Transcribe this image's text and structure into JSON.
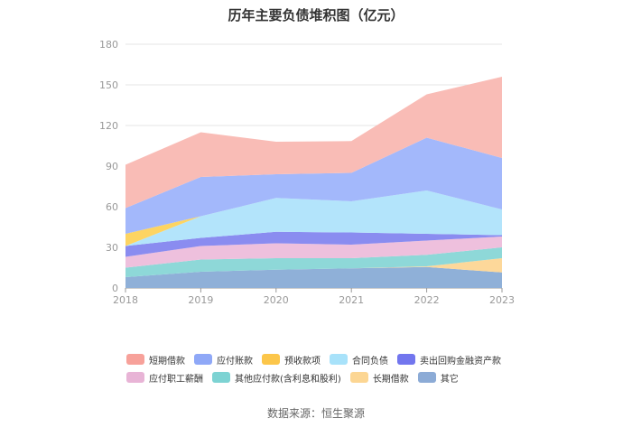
{
  "chart_data": {
    "type": "area",
    "stacked": true,
    "title": "历年主要负债堆积图（亿元）",
    "categories": [
      "2018",
      "2019",
      "2020",
      "2021",
      "2022",
      "2023"
    ],
    "ylim": [
      0,
      180
    ],
    "yticks": [
      0,
      30,
      60,
      90,
      120,
      150,
      180
    ],
    "grid": true,
    "legend_position": "bottom",
    "series": [
      {
        "name": "其它",
        "color": "#8fb0d8",
        "values": [
          8.0,
          12.0,
          13.5,
          14.5,
          15.5,
          11.5
        ]
      },
      {
        "name": "长期借款",
        "color": "#fdd89a",
        "values": [
          0.0,
          0.0,
          0.0,
          0.0,
          0.5,
          10.5
        ]
      },
      {
        "name": "其他应付款(含利息和股利)",
        "color": "#8ed8d8",
        "values": [
          7.0,
          9.0,
          8.5,
          7.5,
          8.5,
          8.0
        ]
      },
      {
        "name": "应付职工薪酬",
        "color": "#eec0dd",
        "values": [
          8.0,
          10.0,
          11.0,
          10.0,
          10.5,
          8.0
        ]
      },
      {
        "name": "卖出回购金融资产款",
        "color": "#8a8cf0",
        "values": [
          8.0,
          6.0,
          8.5,
          9.0,
          5.0,
          1.0
        ]
      },
      {
        "name": "合同负债",
        "color": "#b3e4fb",
        "values": [
          0.0,
          16.0,
          25.0,
          23.0,
          32.0,
          19.0
        ]
      },
      {
        "name": "预收款项",
        "color": "#fdd462",
        "values": [
          9.0,
          0.0,
          0.0,
          0.0,
          0.0,
          0.0
        ]
      },
      {
        "name": "应付账款",
        "color": "#a3b8fb",
        "values": [
          19.0,
          29.0,
          17.5,
          21.0,
          39.0,
          38.0
        ]
      },
      {
        "name": "短期借款",
        "color": "#f9bcb6",
        "values": [
          32.0,
          33.0,
          24.0,
          23.5,
          32.0,
          60.0
        ]
      }
    ]
  },
  "legend": {
    "rows": [
      [
        {
          "name": "短期借款",
          "color": "#f7a19a"
        },
        {
          "name": "应付账款",
          "color": "#8fa8f7"
        },
        {
          "name": "预收款项",
          "color": "#fcc64a"
        },
        {
          "name": "合同负债",
          "color": "#a8e2fa"
        },
        {
          "name": "卖出回购金融资产款",
          "color": "#7276ee"
        }
      ],
      [
        {
          "name": "应付职工薪酬",
          "color": "#e8b4d6"
        },
        {
          "name": "其他应付款(含利息和股利)",
          "color": "#7dd3d3"
        },
        {
          "name": "长期借款",
          "color": "#fcd693"
        },
        {
          "name": "其它",
          "color": "#8cabd6"
        }
      ]
    ]
  },
  "source": "数据来源：恒生聚源"
}
